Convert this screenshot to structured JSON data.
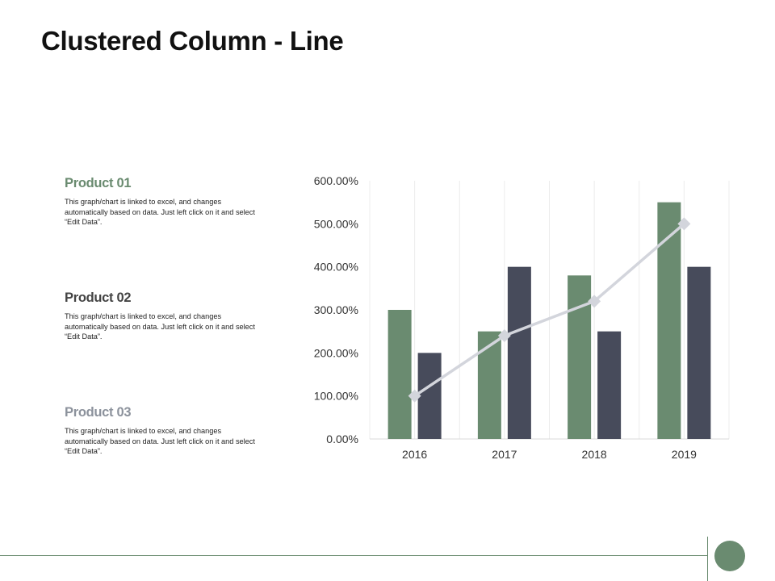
{
  "title": "Clustered Column - Line",
  "products": [
    {
      "title": "Product 01",
      "desc": "This graph/chart is linked to excel, and changes automatically based on data. Just left click on it and select “Edit Data”."
    },
    {
      "title": "Product 02",
      "desc": "This graph/chart is linked to excel, and changes automatically based on data. Just left click on it and select “Edit Data”."
    },
    {
      "title": "Product 03",
      "desc": "This graph/chart is linked to excel, and changes automatically based on data. Just left click on it and select “Edit Data”."
    }
  ],
  "colors": {
    "series1": "#6a8b70",
    "series2": "#474b5b",
    "series3": "#d3d5dc",
    "accent": "#6a8b70"
  },
  "chart_data": {
    "type": "bar",
    "categories": [
      "2016",
      "2017",
      "2018",
      "2019"
    ],
    "series": [
      {
        "type": "bar",
        "values": [
          300,
          250,
          380,
          550
        ]
      },
      {
        "type": "bar",
        "values": [
          200,
          400,
          250,
          400
        ]
      },
      {
        "type": "line",
        "marker": "diamond",
        "values": [
          100,
          240,
          320,
          500
        ]
      }
    ],
    "value_format": "percent",
    "ylim": [
      0,
      600
    ],
    "yticks": [
      0,
      100,
      200,
      300,
      400,
      500,
      600
    ],
    "ytick_labels": [
      "0.00%",
      "100.00%",
      "200.00%",
      "300.00%",
      "400.00%",
      "500.00%",
      "600.00%"
    ],
    "grid": "vertical",
    "legend": "none",
    "title": "",
    "xlabel": "",
    "ylabel": ""
  }
}
